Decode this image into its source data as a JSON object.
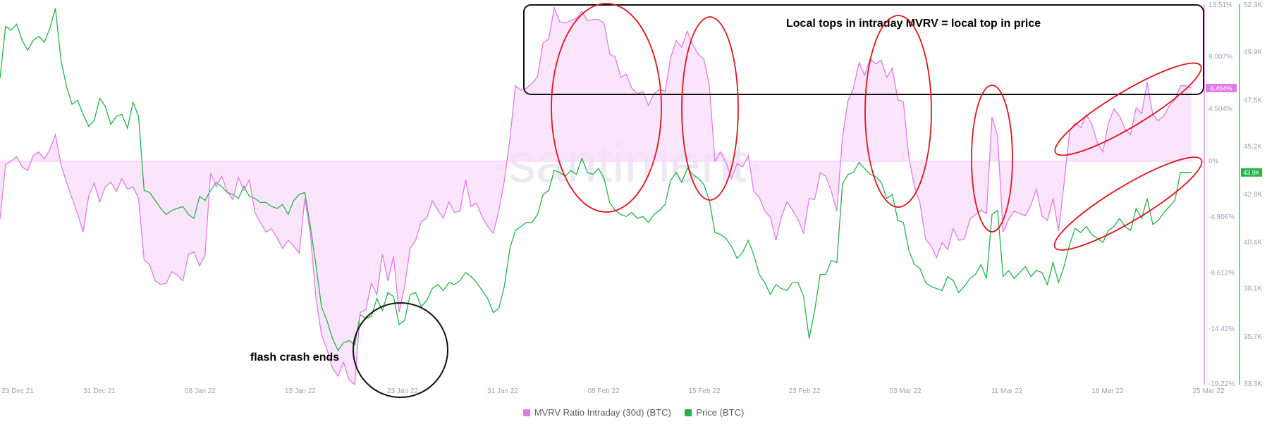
{
  "chart_data": {
    "type": "line",
    "watermark": "·santiment·",
    "x_tick_labels": [
      "23 Dec 21",
      "31 Dec 21",
      "08 Jan 22",
      "15 Jan 22",
      "23 Jan 22",
      "31 Jan 22",
      "08 Feb 22",
      "15 Feb 22",
      "23 Feb 22",
      "03 Mar 22",
      "11 Mar 22",
      "18 Mar 22",
      "25 Mar 22"
    ],
    "mvrv_axis": {
      "tick_labels": [
        "13.51%",
        "9.007%",
        "4.504%",
        "0%",
        "-4.806%",
        "-9.612%",
        "-14.42%",
        "-19.22%"
      ],
      "ylim": [
        -19.22,
        13.51
      ],
      "unit": "%",
      "color": "#e07ae8",
      "current_label": "6.464%"
    },
    "price_axis": {
      "tick_labels": [
        "52.3K",
        "49.9K",
        "47.5K",
        "45.2K",
        "42.8K",
        "40.4K",
        "38.1K",
        "35.7K",
        "33.3K"
      ],
      "ylim": [
        33.3,
        52.3
      ],
      "unit": "K",
      "color": "#26b24a",
      "current_label": "43.9K"
    },
    "series": [
      {
        "name": "MVRV Ratio Intraday (30d) (BTC)",
        "color": "#e07ae8",
        "values": [
          -5.0,
          -0.3,
          0.0,
          0.4,
          -0.5,
          -0.8,
          0.5,
          0.8,
          0.2,
          1.0,
          2.3,
          -0.3,
          -1.8,
          -3.2,
          -4.5,
          -6.1,
          -3.0,
          -1.9,
          -3.5,
          -2.2,
          -1.8,
          -2.6,
          -1.5,
          -2.4,
          -2.2,
          -3.2,
          -8.5,
          -8.9,
          -10.3,
          -10.6,
          -10.5,
          -9.5,
          -9.8,
          -10.3,
          -8.0,
          -7.8,
          -9.0,
          -8.1,
          -1.0,
          -2.2,
          -1.3,
          -2.6,
          -3.3,
          -1.4,
          -2.5,
          -1.6,
          -4.4,
          -5.3,
          -6.1,
          -5.8,
          -6.6,
          -7.5,
          -6.8,
          -7.3,
          -7.9,
          -3.2,
          -6.3,
          -11.7,
          -14.9,
          -16.2,
          -17.8,
          -18.5,
          -17.3,
          -18.8,
          -19.2,
          -13.0,
          -12.8,
          -10.5,
          -11.5,
          -8.0,
          -10.3,
          -8.2,
          -13.0,
          -10.8,
          -7.5,
          -6.8,
          -5.2,
          -4.9,
          -3.4,
          -4.2,
          -4.9,
          -3.5,
          -4.4,
          -4.3,
          -1.6,
          -3.9,
          -3.6,
          -4.8,
          -5.6,
          -6.2,
          -4.3,
          -1.7,
          1.9,
          6.5,
          6.1,
          6.3,
          6.7,
          7.3,
          10.2,
          10.5,
          13.2,
          12.0,
          11.9,
          12.1,
          12.3,
          12.9,
          12.1,
          12.2,
          12.2,
          11.9,
          9.2,
          9.0,
          7.2,
          7.5,
          6.3,
          5.8,
          6.0,
          4.8,
          5.8,
          6.2,
          6.0,
          8.9,
          10.4,
          9.8,
          11.2,
          10.0,
          9.2,
          8.8,
          6.5,
          0.0,
          0.8,
          -0.1,
          -1.5,
          -0.2,
          -0.5,
          0.5,
          -2.6,
          -3.1,
          -4.3,
          -4.8,
          -6.8,
          -4.8,
          -3.5,
          -4.2,
          -5.0,
          -6.2,
          -3.2,
          -3.3,
          -1.0,
          -1.3,
          -2.6,
          -4.3,
          2.0,
          5.2,
          6.3,
          8.5,
          7.4,
          8.8,
          8.4,
          8.7,
          7.2,
          8.0,
          5.3,
          5.1,
          0.3,
          -2.2,
          -3.6,
          -6.7,
          -7.3,
          -8.3,
          -7.0,
          -7.6,
          -5.8,
          -6.8,
          -6.7,
          -5.0,
          -4.6,
          -4.2,
          -4.5,
          3.8,
          2.2,
          -6.1,
          -5.0,
          -4.3,
          -4.5,
          -4.7,
          -3.8,
          -2.4,
          -4.7,
          -5.1,
          -3.2,
          -6.0,
          -1.9,
          2.6,
          3.3,
          2.9,
          4.0,
          3.2,
          1.6,
          0.8,
          3.3,
          4.5,
          3.9,
          2.8,
          2.3,
          4.6,
          4.1,
          6.8,
          4.0,
          3.5,
          3.9,
          4.8,
          5.3,
          6.5,
          6.5,
          6.3
        ]
      },
      {
        "name": "Price (BTC)",
        "color": "#26b24a",
        "values": [
          48.6,
          51.2,
          51.0,
          51.3,
          50.5,
          50.0,
          50.5,
          50.7,
          50.4,
          51.1,
          52.1,
          49.5,
          48.2,
          47.3,
          47.5,
          46.8,
          46.2,
          46.5,
          47.6,
          47.2,
          46.3,
          46.7,
          46.8,
          46.1,
          47.4,
          46.7,
          43.0,
          42.9,
          42.5,
          42.1,
          41.8,
          42.0,
          42.1,
          42.2,
          41.8,
          41.6,
          42.7,
          42.5,
          43.0,
          43.4,
          43.2,
          42.9,
          42.8,
          42.6,
          43.2,
          42.7,
          42.6,
          42.4,
          42.4,
          42.2,
          42.1,
          42.3,
          41.8,
          42.5,
          42.8,
          42.9,
          41.2,
          39.3,
          37.2,
          36.5,
          35.6,
          35.0,
          35.4,
          35.5,
          35.3,
          36.8,
          36.6,
          36.7,
          37.6,
          37.0,
          37.9,
          37.7,
          36.3,
          36.5,
          37.8,
          37.9,
          37.2,
          37.5,
          38.1,
          38.3,
          38.0,
          38.4,
          38.3,
          38.5,
          38.9,
          38.7,
          38.4,
          38.0,
          37.6,
          36.9,
          37.1,
          38.2,
          40.1,
          41.0,
          41.2,
          41.4,
          41.4,
          41.8,
          42.8,
          43.0,
          44.0,
          43.9,
          43.7,
          44.0,
          43.8,
          44.6,
          43.9,
          43.8,
          44.1,
          43.6,
          42.4,
          42.0,
          41.8,
          41.7,
          41.9,
          41.6,
          41.7,
          41.4,
          41.8,
          42.0,
          42.3,
          43.5,
          43.9,
          43.4,
          44.1,
          43.8,
          43.6,
          43.3,
          42.5,
          40.9,
          40.8,
          40.6,
          40.2,
          39.6,
          39.9,
          40.5,
          39.8,
          38.8,
          38.4,
          37.8,
          38.3,
          38.1,
          38.0,
          38.4,
          38.4,
          37.7,
          35.6,
          37.0,
          38.8,
          38.8,
          39.5,
          39.4,
          43.3,
          43.8,
          43.9,
          44.4,
          44.1,
          43.8,
          43.7,
          43.4,
          42.6,
          42.8,
          41.5,
          41.4,
          40.0,
          39.3,
          39.1,
          38.4,
          38.2,
          38.1,
          38.0,
          38.7,
          38.5,
          37.9,
          38.2,
          38.6,
          38.8,
          39.3,
          38.6,
          41.8,
          42.0,
          38.7,
          39.0,
          38.6,
          38.9,
          39.2,
          38.7,
          39.0,
          38.9,
          38.3,
          39.4,
          38.4,
          39.2,
          40.3,
          41.1,
          40.9,
          41.2,
          40.8,
          40.6,
          40.4,
          41.0,
          41.2,
          41.6,
          41.2,
          41.0,
          42.1,
          41.6,
          42.6,
          41.3,
          41.5,
          41.9,
          42.2,
          42.5,
          43.9,
          43.9,
          43.9
        ]
      }
    ],
    "annotations": {
      "box_title": "Local tops in intraday MVRV = local top  in price",
      "flash_crash": "flash crash ends"
    }
  }
}
